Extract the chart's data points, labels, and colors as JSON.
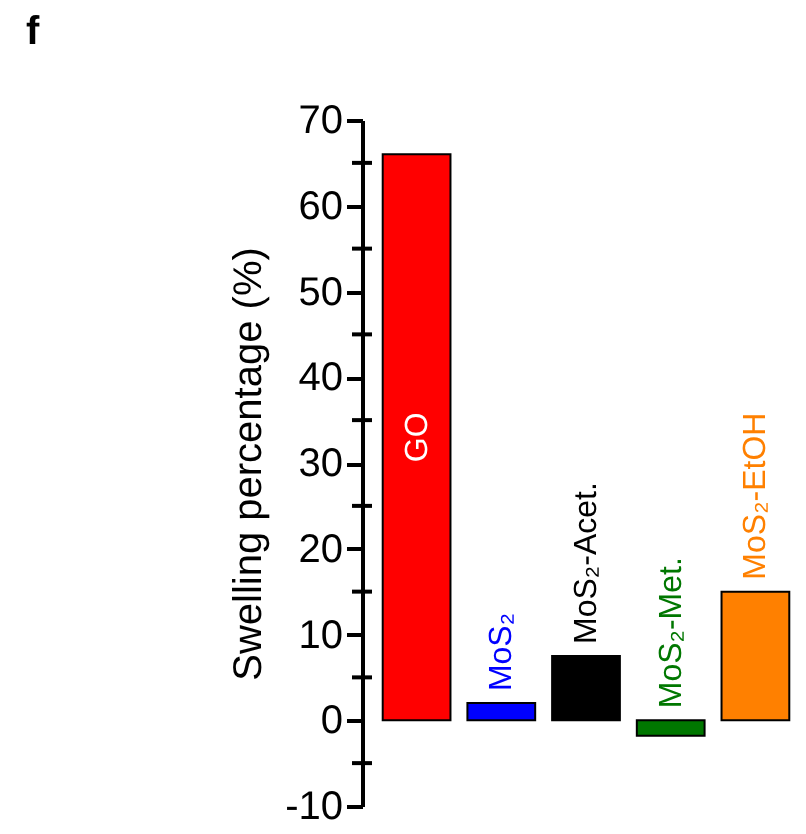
{
  "chart_data": {
    "type": "bar",
    "ylabel": "Swelling percentage (%)",
    "categories": [
      "GO",
      "MoS₂",
      "MoS₂-Acet.",
      "MoS₂-Met.",
      "MoS₂-EtOH"
    ],
    "values": [
      66,
      2,
      7.5,
      -1.8,
      15
    ],
    "colors": [
      "#ff0000",
      "#0000ff",
      "#000000",
      "#007700",
      "#ff8000"
    ],
    "ylim": [
      -10,
      70
    ],
    "yticks": [
      -10,
      {
        "value": -5,
        "label": null
      },
      0,
      {
        "value": 5,
        "label": null
      },
      10,
      {
        "value": 15,
        "label": null
      },
      20,
      {
        "value": 25,
        "label": null
      },
      30,
      {
        "value": 35,
        "label": null
      },
      40,
      {
        "value": 45,
        "label": null
      },
      50,
      {
        "value": 55,
        "label": null
      },
      60,
      {
        "value": 65,
        "label": null
      },
      70
    ],
    "tick_labels": "y",
    "grid": false,
    "annotations": [
      "f"
    ]
  }
}
